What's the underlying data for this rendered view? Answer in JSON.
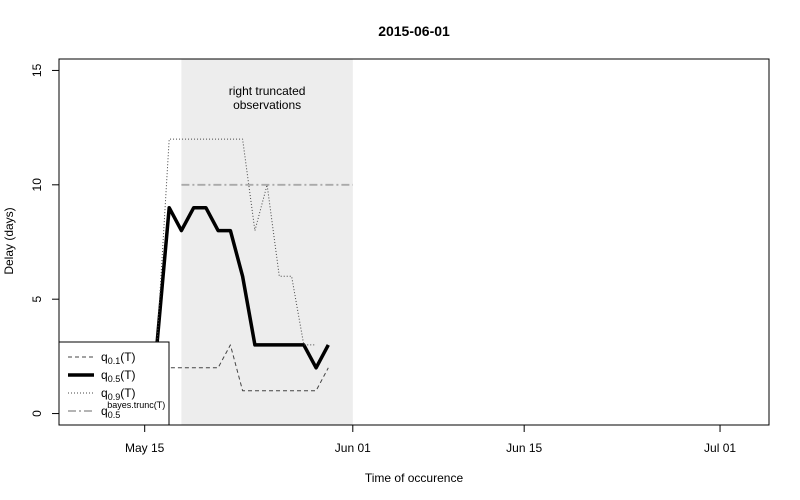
{
  "chart_data": {
    "type": "line",
    "title": "2015-06-01",
    "xlabel": "Time of occurence",
    "ylabel": "Delay (days)",
    "xlim": [
      "2015-05-08",
      "2015-07-05"
    ],
    "ylim": [
      -0.5,
      15.5
    ],
    "x_ticks": [
      {
        "date": "2015-05-15",
        "label": "May 15"
      },
      {
        "date": "2015-06-01",
        "label": "Jun 01"
      },
      {
        "date": "2015-06-15",
        "label": "Jun 15"
      },
      {
        "date": "2015-07-01",
        "label": "Jul 01"
      }
    ],
    "y_ticks": [
      0,
      5,
      10,
      15
    ],
    "grid": false,
    "shaded_region": {
      "start": "2015-05-18",
      "end": "2015-06-01",
      "fill": "#ededed",
      "annotation": [
        "right truncated",
        "observations"
      ]
    },
    "series": [
      {
        "key": "q01",
        "name": "q0.1(T)",
        "style": "dashed",
        "color": "#444444",
        "points": [
          [
            "2015-05-16",
            2
          ],
          [
            "2015-05-17",
            2
          ],
          [
            "2015-05-18",
            2
          ],
          [
            "2015-05-19",
            2
          ],
          [
            "2015-05-20",
            2
          ],
          [
            "2015-05-21",
            2
          ],
          [
            "2015-05-22",
            3
          ],
          [
            "2015-05-23",
            1
          ],
          [
            "2015-05-24",
            1
          ],
          [
            "2015-05-25",
            1
          ],
          [
            "2015-05-26",
            1
          ],
          [
            "2015-05-27",
            1
          ],
          [
            "2015-05-28",
            1
          ],
          [
            "2015-05-29",
            1
          ],
          [
            "2015-05-30",
            2
          ]
        ]
      },
      {
        "key": "q05",
        "name": "q0.5(T)",
        "style": "solid-thick",
        "color": "#000000",
        "points": [
          [
            "2015-05-16",
            3
          ],
          [
            "2015-05-17",
            9
          ],
          [
            "2015-05-18",
            8
          ],
          [
            "2015-05-19",
            9
          ],
          [
            "2015-05-20",
            9
          ],
          [
            "2015-05-21",
            8
          ],
          [
            "2015-05-22",
            8
          ],
          [
            "2015-05-23",
            6
          ],
          [
            "2015-05-24",
            3
          ],
          [
            "2015-05-25",
            3
          ],
          [
            "2015-05-26",
            3
          ],
          [
            "2015-05-27",
            3
          ],
          [
            "2015-05-28",
            3
          ],
          [
            "2015-05-29",
            2
          ],
          [
            "2015-05-30",
            3
          ]
        ]
      },
      {
        "key": "q09",
        "name": "q0.9(T)",
        "style": "dotted",
        "color": "#444444",
        "points": [
          [
            "2015-05-16",
            3
          ],
          [
            "2015-05-17",
            12
          ],
          [
            "2015-05-18",
            12
          ],
          [
            "2015-05-19",
            12
          ],
          [
            "2015-05-20",
            12
          ],
          [
            "2015-05-21",
            12
          ],
          [
            "2015-05-22",
            12
          ],
          [
            "2015-05-23",
            12
          ],
          [
            "2015-05-24",
            8
          ],
          [
            "2015-05-25",
            10
          ],
          [
            "2015-05-26",
            6
          ],
          [
            "2015-05-27",
            6
          ],
          [
            "2015-05-28",
            3
          ],
          [
            "2015-05-29",
            3
          ]
        ]
      },
      {
        "key": "bayes",
        "name": "q0.5bayes.trunc(T)",
        "style": "dashdot",
        "color": "#aaaaaa",
        "points": [
          [
            "2015-05-18",
            10
          ],
          [
            "2015-06-01",
            10
          ]
        ]
      }
    ],
    "legend": {
      "position": "bottom-left",
      "entries": [
        {
          "series": "q01",
          "base": "q",
          "sub": "0.1",
          "sup": "",
          "tail": "(T)"
        },
        {
          "series": "q05",
          "base": "q",
          "sub": "0.5",
          "sup": "",
          "tail": "(T)"
        },
        {
          "series": "q09",
          "base": "q",
          "sub": "0.9",
          "sup": "",
          "tail": "(T)"
        },
        {
          "series": "bayes",
          "base": "q",
          "sub": "0.5",
          "sup": "bayes.trunc(T)",
          "tail": ""
        }
      ]
    }
  }
}
